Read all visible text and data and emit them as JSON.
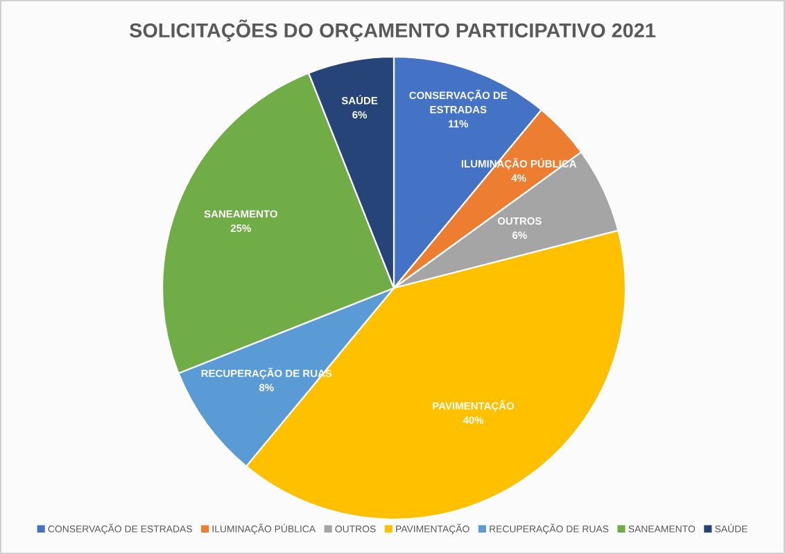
{
  "chart_data": {
    "type": "pie",
    "title": "SOLICITAÇÕES DO ORÇAMENTO PARTICIPATIVO 2021",
    "categories": [
      "CONSERVAÇÃO DE ESTRADAS",
      "ILUMINAÇÃO PÚBLICA",
      "OUTROS",
      "PAVIMENTAÇÃO",
      "RECUPERAÇÃO DE RUAS",
      "SANEAMENTO",
      "SAÚDE"
    ],
    "values": [
      11,
      4,
      6,
      40,
      8,
      25,
      6
    ],
    "colors": [
      "#4472c4",
      "#ed7d31",
      "#a5a5a5",
      "#ffc000",
      "#5b9bd5",
      "#70ad47",
      "#264478"
    ],
    "value_labels": [
      "11%",
      "4%",
      "6%",
      "40%",
      "8%",
      "25%",
      "6%"
    ],
    "legend": "bottom"
  }
}
